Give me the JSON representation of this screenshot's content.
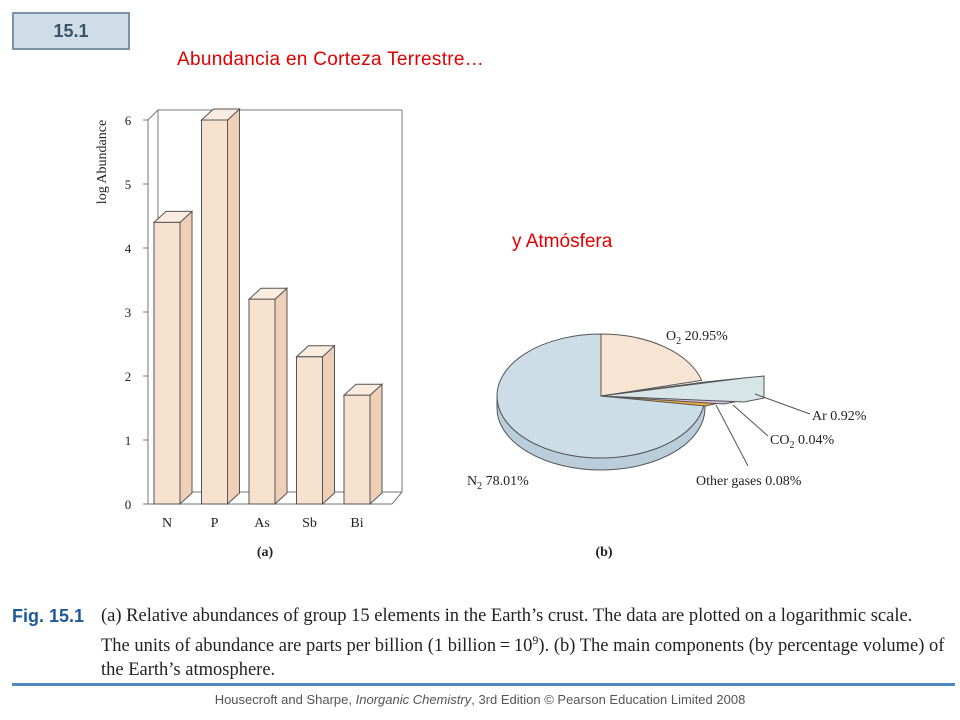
{
  "slide_number": "15.1",
  "title_crust": "Abundancia en Corteza Terrestre…",
  "title_atmosphere": "y Atmósfera",
  "chart_data": [
    {
      "type": "bar",
      "panel_label": "(a)",
      "ylabel": "log Abundance",
      "categories": [
        "N",
        "P",
        "As",
        "Sb",
        "Bi"
      ],
      "values": [
        4.4,
        6.0,
        3.2,
        2.3,
        1.7
      ],
      "ylim": [
        0,
        6
      ],
      "yticks": [
        "0",
        "1",
        "2",
        "3",
        "4",
        "5",
        "6"
      ],
      "colors": {
        "bar_front": "#f7e1cf",
        "bar_side": "#efcfb6",
        "bar_top": "#fbece0"
      }
    },
    {
      "type": "pie",
      "panel_label": "(b)",
      "slices": [
        {
          "name": "N",
          "sub": "2",
          "label": "N2 78.01%",
          "value": 78.01,
          "color": "#ccdde8"
        },
        {
          "name": "O",
          "sub": "2",
          "label": "O2 20.95%",
          "value": 20.95,
          "color": "#f7e4d3"
        },
        {
          "name": "Other gases",
          "sub": "",
          "label": "Other gases 0.08%",
          "value": 0.08,
          "color": "#efae3c"
        },
        {
          "name": "CO",
          "sub": "2",
          "label": "CO2 0.04%",
          "value": 0.04,
          "color": "#d9bde0"
        },
        {
          "name": "Ar",
          "sub": "",
          "label": "Ar 0.92%",
          "value": 0.92,
          "color": "#d6e6e8"
        }
      ],
      "label_parts": {
        "o2": {
          "main": "O",
          "sub": "2",
          "value": " 20.95%"
        },
        "n2": {
          "main": "N",
          "sub": "2",
          "value": " 78.01%"
        },
        "ar": {
          "main": "Ar 0.92%"
        },
        "co2": {
          "main": "CO",
          "sub": "2",
          "value": " 0.04%"
        },
        "other": {
          "main": "Other gases 0.08%"
        }
      }
    }
  ],
  "caption": {
    "fig_label": "Fig. 15.1",
    "line1": "(a) Relative abundances of group 15 elements in the Earth’s crust. The data are plotted on a logarithmic scale.",
    "line2_pre": "The units of abundance are parts per billion (1 billion = 10",
    "line2_sup": "9",
    "line2_post": "). (b) The main components (by percentage volume) of",
    "line3": "the Earth’s atmosphere."
  },
  "footer": {
    "pre": "Housecroft and Sharpe, ",
    "italic": "Inorganic Chemistry",
    "post": ", 3rd Edition © Pearson Education Limited 2008"
  }
}
